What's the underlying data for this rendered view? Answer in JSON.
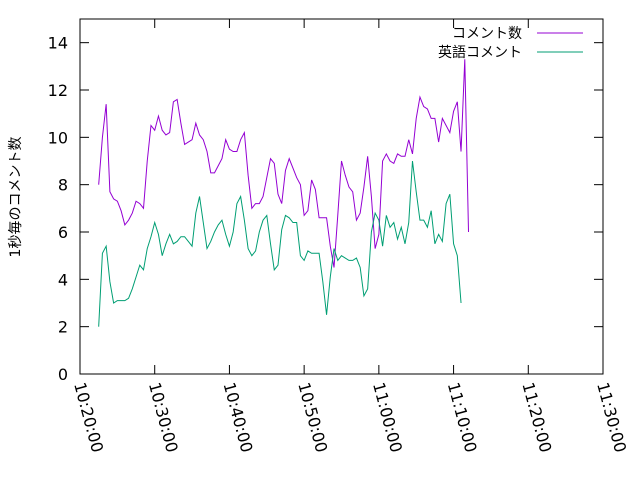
{
  "chart_data": {
    "type": "line",
    "ylabel": "1秒毎のコメント数",
    "xlabel": "",
    "ylim": [
      0,
      15
    ],
    "yticks": [
      0,
      2,
      4,
      6,
      8,
      10,
      12,
      14
    ],
    "xlim": [
      "10:20:00",
      "11:30:00"
    ],
    "xticks": [
      "10:20:00",
      "10:30:00",
      "10:40:00",
      "10:50:00",
      "11:00:00",
      "11:10:00",
      "11:20:00",
      "11:30:00"
    ],
    "legend_position": "top-right",
    "series": [
      {
        "name": "コメント数",
        "color": "#9400d3",
        "points": [
          [
            "10:22:30",
            8.0
          ],
          [
            "10:23:00",
            10.0
          ],
          [
            "10:23:30",
            11.4
          ],
          [
            "10:24:00",
            7.7
          ],
          [
            "10:24:30",
            7.4
          ],
          [
            "10:25:00",
            7.3
          ],
          [
            "10:25:30",
            6.9
          ],
          [
            "10:26:00",
            6.3
          ],
          [
            "10:26:30",
            6.5
          ],
          [
            "10:27:00",
            6.8
          ],
          [
            "10:27:30",
            7.3
          ],
          [
            "10:28:00",
            7.2
          ],
          [
            "10:28:30",
            7.0
          ],
          [
            "10:29:00",
            9.0
          ],
          [
            "10:29:30",
            10.5
          ],
          [
            "10:30:00",
            10.3
          ],
          [
            "10:30:30",
            10.9
          ],
          [
            "10:31:00",
            10.3
          ],
          [
            "10:31:30",
            10.1
          ],
          [
            "10:32:00",
            10.2
          ],
          [
            "10:32:30",
            11.5
          ],
          [
            "10:33:00",
            11.6
          ],
          [
            "10:33:30",
            10.6
          ],
          [
            "10:34:00",
            9.7
          ],
          [
            "10:34:30",
            9.8
          ],
          [
            "10:35:00",
            9.9
          ],
          [
            "10:35:30",
            10.6
          ],
          [
            "10:36:00",
            10.1
          ],
          [
            "10:36:30",
            9.9
          ],
          [
            "10:37:00",
            9.4
          ],
          [
            "10:37:30",
            8.5
          ],
          [
            "10:38:00",
            8.5
          ],
          [
            "10:38:30",
            8.8
          ],
          [
            "10:39:00",
            9.1
          ],
          [
            "10:39:30",
            9.9
          ],
          [
            "10:40:00",
            9.5
          ],
          [
            "10:40:30",
            9.4
          ],
          [
            "10:41:00",
            9.4
          ],
          [
            "10:41:30",
            9.9
          ],
          [
            "10:42:00",
            10.2
          ],
          [
            "10:42:30",
            8.4
          ],
          [
            "10:43:00",
            7.0
          ],
          [
            "10:43:30",
            7.2
          ],
          [
            "10:44:00",
            7.2
          ],
          [
            "10:44:30",
            7.5
          ],
          [
            "10:45:00",
            8.3
          ],
          [
            "10:45:30",
            9.1
          ],
          [
            "10:46:00",
            8.9
          ],
          [
            "10:46:30",
            7.6
          ],
          [
            "10:47:00",
            7.2
          ],
          [
            "10:47:30",
            8.6
          ],
          [
            "10:48:00",
            9.1
          ],
          [
            "10:48:30",
            8.7
          ],
          [
            "10:49:00",
            8.3
          ],
          [
            "10:49:30",
            8.0
          ],
          [
            "10:50:00",
            6.7
          ],
          [
            "10:50:30",
            6.9
          ],
          [
            "10:51:00",
            8.2
          ],
          [
            "10:51:30",
            7.8
          ],
          [
            "10:52:00",
            6.6
          ],
          [
            "10:52:30",
            6.6
          ],
          [
            "10:53:00",
            6.6
          ],
          [
            "10:53:30",
            5.4
          ],
          [
            "10:54:00",
            4.5
          ],
          [
            "10:54:30",
            6.7
          ],
          [
            "10:55:00",
            9.0
          ],
          [
            "10:55:30",
            8.4
          ],
          [
            "10:56:00",
            7.9
          ],
          [
            "10:56:30",
            7.7
          ],
          [
            "10:57:00",
            6.5
          ],
          [
            "10:57:30",
            6.8
          ],
          [
            "10:58:00",
            7.9
          ],
          [
            "10:58:30",
            9.2
          ],
          [
            "10:59:00",
            7.5
          ],
          [
            "10:59:30",
            5.3
          ],
          [
            "11:00:00",
            5.9
          ],
          [
            "11:00:30",
            9.0
          ],
          [
            "11:01:00",
            9.3
          ],
          [
            "11:01:30",
            9.0
          ],
          [
            "11:02:00",
            8.9
          ],
          [
            "11:02:30",
            9.3
          ],
          [
            "11:03:00",
            9.2
          ],
          [
            "11:03:30",
            9.2
          ],
          [
            "11:04:00",
            9.9
          ],
          [
            "11:04:30",
            9.3
          ],
          [
            "11:05:00",
            10.8
          ],
          [
            "11:05:30",
            11.7
          ],
          [
            "11:06:00",
            11.3
          ],
          [
            "11:06:30",
            11.2
          ],
          [
            "11:07:00",
            10.8
          ],
          [
            "11:07:30",
            10.8
          ],
          [
            "11:08:00",
            9.8
          ],
          [
            "11:08:30",
            10.8
          ],
          [
            "11:09:00",
            10.5
          ],
          [
            "11:09:30",
            10.2
          ],
          [
            "11:10:00",
            11.1
          ],
          [
            "11:10:30",
            11.5
          ],
          [
            "11:11:00",
            9.4
          ],
          [
            "11:11:30",
            13.3
          ],
          [
            "11:12:00",
            6.0
          ]
        ]
      },
      {
        "name": "英語コメント",
        "color": "#009e73",
        "points": [
          [
            "10:22:30",
            2.0
          ],
          [
            "10:23:00",
            5.1
          ],
          [
            "10:23:30",
            5.4
          ],
          [
            "10:24:00",
            3.9
          ],
          [
            "10:24:30",
            3.0
          ],
          [
            "10:25:00",
            3.1
          ],
          [
            "10:25:30",
            3.1
          ],
          [
            "10:26:00",
            3.1
          ],
          [
            "10:26:30",
            3.2
          ],
          [
            "10:27:00",
            3.6
          ],
          [
            "10:27:30",
            4.1
          ],
          [
            "10:28:00",
            4.6
          ],
          [
            "10:28:30",
            4.4
          ],
          [
            "10:29:00",
            5.3
          ],
          [
            "10:29:30",
            5.8
          ],
          [
            "10:30:00",
            6.4
          ],
          [
            "10:30:30",
            5.9
          ],
          [
            "10:31:00",
            5.0
          ],
          [
            "10:31:30",
            5.5
          ],
          [
            "10:32:00",
            5.9
          ],
          [
            "10:32:30",
            5.5
          ],
          [
            "10:33:00",
            5.6
          ],
          [
            "10:33:30",
            5.8
          ],
          [
            "10:34:00",
            5.8
          ],
          [
            "10:34:30",
            5.6
          ],
          [
            "10:35:00",
            5.4
          ],
          [
            "10:35:30",
            6.8
          ],
          [
            "10:36:00",
            7.5
          ],
          [
            "10:36:30",
            6.4
          ],
          [
            "10:37:00",
            5.3
          ],
          [
            "10:37:30",
            5.6
          ],
          [
            "10:38:00",
            6.0
          ],
          [
            "10:38:30",
            6.3
          ],
          [
            "10:39:00",
            6.5
          ],
          [
            "10:39:30",
            5.9
          ],
          [
            "10:40:00",
            5.4
          ],
          [
            "10:40:30",
            6.0
          ],
          [
            "10:41:00",
            7.2
          ],
          [
            "10:41:30",
            7.5
          ],
          [
            "10:42:00",
            6.5
          ],
          [
            "10:42:30",
            5.3
          ],
          [
            "10:43:00",
            5.0
          ],
          [
            "10:43:30",
            5.2
          ],
          [
            "10:44:00",
            6.0
          ],
          [
            "10:44:30",
            6.5
          ],
          [
            "10:45:00",
            6.7
          ],
          [
            "10:45:30",
            5.5
          ],
          [
            "10:46:00",
            4.4
          ],
          [
            "10:46:30",
            4.6
          ],
          [
            "10:47:00",
            6.1
          ],
          [
            "10:47:30",
            6.7
          ],
          [
            "10:48:00",
            6.6
          ],
          [
            "10:48:30",
            6.4
          ],
          [
            "10:49:00",
            6.4
          ],
          [
            "10:49:30",
            5.0
          ],
          [
            "10:50:00",
            4.8
          ],
          [
            "10:50:30",
            5.2
          ],
          [
            "10:51:00",
            5.1
          ],
          [
            "10:51:30",
            5.1
          ],
          [
            "10:52:00",
            5.1
          ],
          [
            "10:52:30",
            3.9
          ],
          [
            "10:53:00",
            2.5
          ],
          [
            "10:53:30",
            4.1
          ],
          [
            "10:54:00",
            5.3
          ],
          [
            "10:54:30",
            4.8
          ],
          [
            "10:55:00",
            5.0
          ],
          [
            "10:55:30",
            4.9
          ],
          [
            "10:56:00",
            4.8
          ],
          [
            "10:56:30",
            4.8
          ],
          [
            "10:57:00",
            4.9
          ],
          [
            "10:57:30",
            4.5
          ],
          [
            "10:58:00",
            3.3
          ],
          [
            "10:58:30",
            3.6
          ],
          [
            "10:59:00",
            6.0
          ],
          [
            "10:59:30",
            6.8
          ],
          [
            "11:00:00",
            6.5
          ],
          [
            "11:00:30",
            5.4
          ],
          [
            "11:01:00",
            6.7
          ],
          [
            "11:01:30",
            6.2
          ],
          [
            "11:02:00",
            6.4
          ],
          [
            "11:02:30",
            5.7
          ],
          [
            "11:03:00",
            6.2
          ],
          [
            "11:03:30",
            5.5
          ],
          [
            "11:04:00",
            6.4
          ],
          [
            "11:04:30",
            9.0
          ],
          [
            "11:05:00",
            7.7
          ],
          [
            "11:05:30",
            6.5
          ],
          [
            "11:06:00",
            6.5
          ],
          [
            "11:06:30",
            6.2
          ],
          [
            "11:07:00",
            6.9
          ],
          [
            "11:07:30",
            5.5
          ],
          [
            "11:08:00",
            5.9
          ],
          [
            "11:08:30",
            5.6
          ],
          [
            "11:09:00",
            7.2
          ],
          [
            "11:09:30",
            7.6
          ],
          [
            "11:10:00",
            5.5
          ],
          [
            "11:10:30",
            5.0
          ],
          [
            "11:11:00",
            3.0
          ]
        ]
      }
    ]
  }
}
